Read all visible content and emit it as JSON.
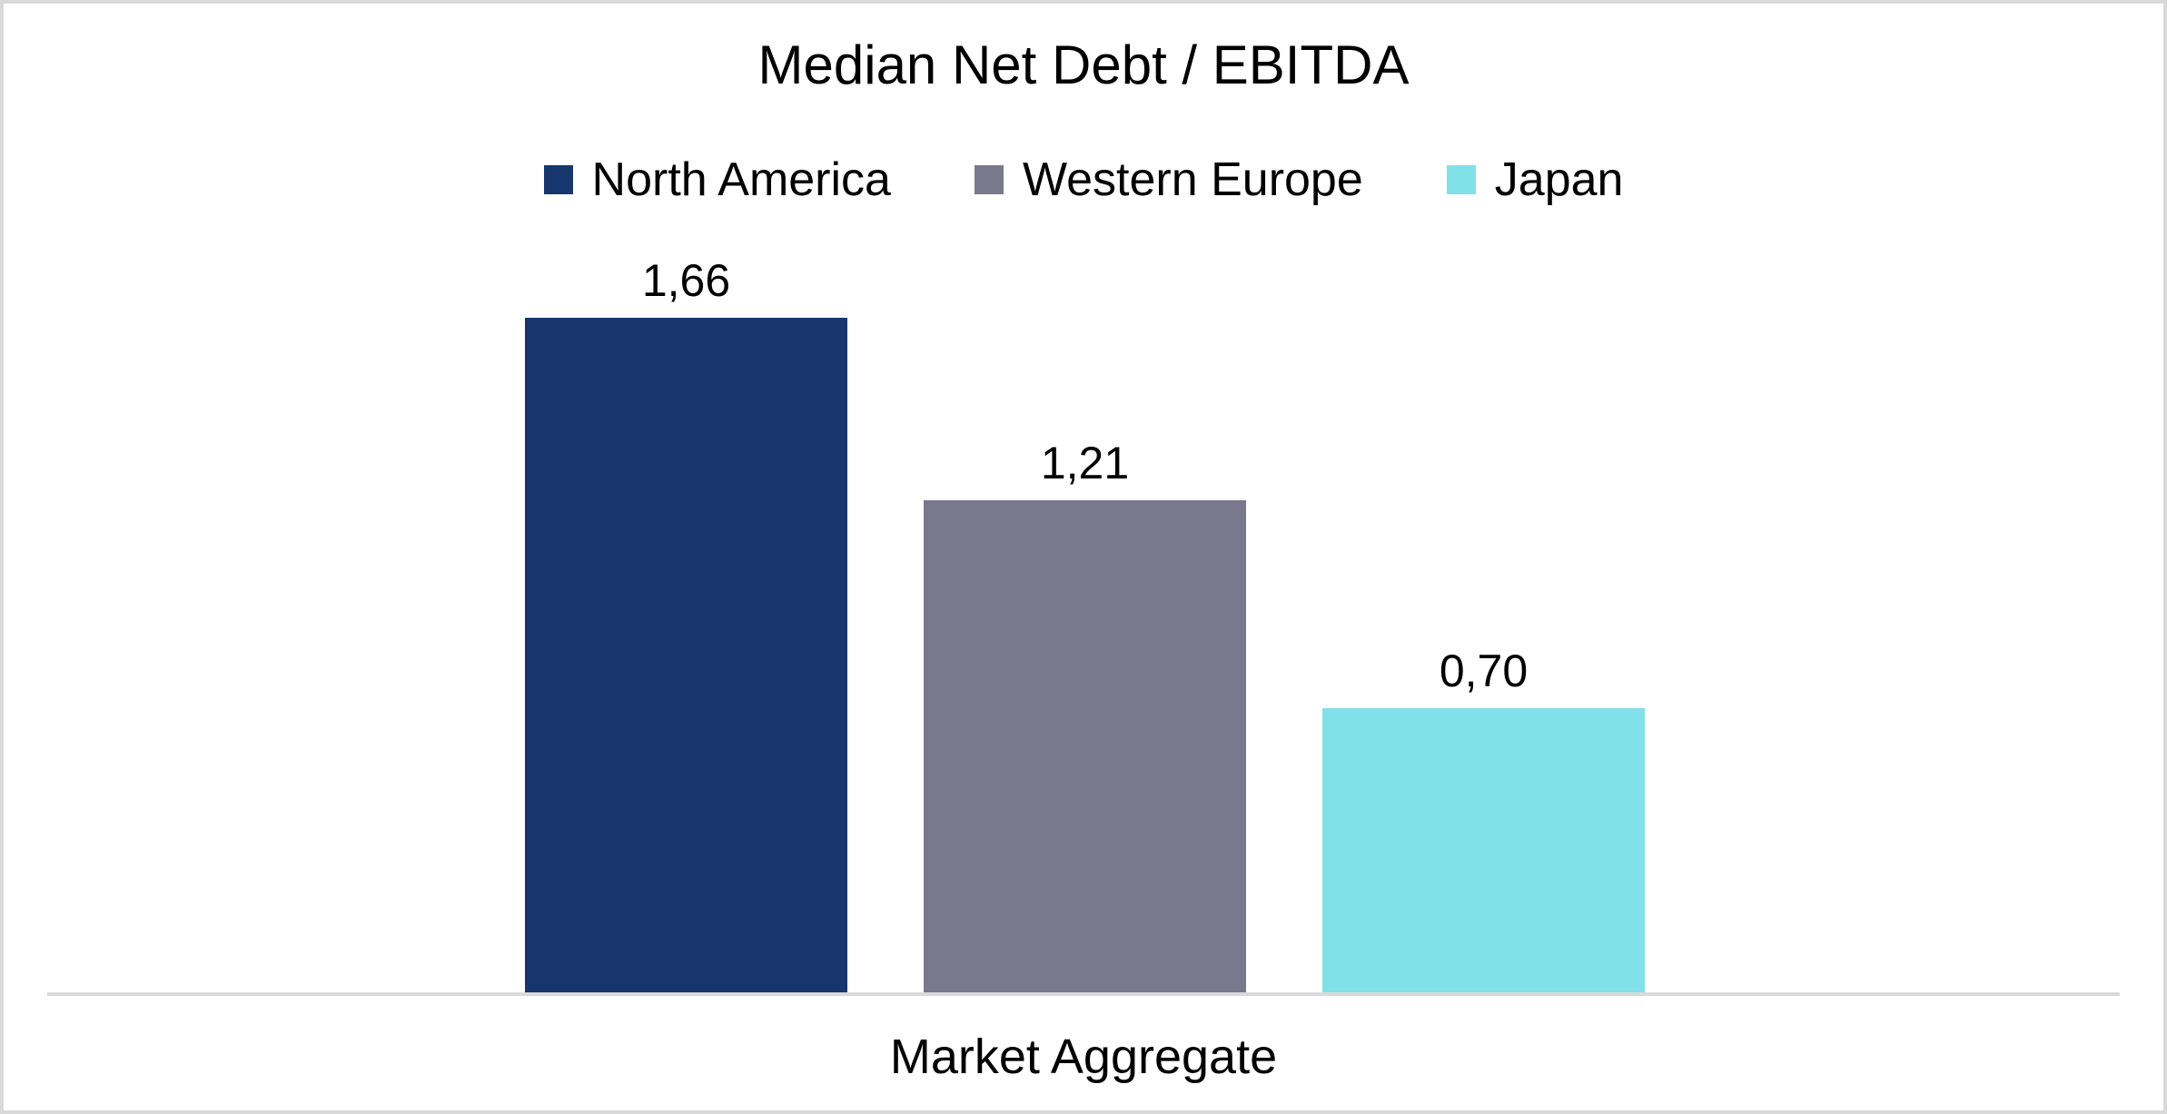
{
  "chart_data": {
    "type": "bar",
    "title": "Median Net Debt / EBITDA",
    "xlabel": "",
    "ylabel": "",
    "category": "Market Aggregate",
    "categories": [
      "Market Aggregate"
    ],
    "legend_position": "top",
    "grid": false,
    "value_labels": true,
    "decimal_separator": ",",
    "ylim": [
      0,
      1.85
    ],
    "series": [
      {
        "name": "North America",
        "value": 1.66,
        "label": "1,66",
        "color": "#17366d"
      },
      {
        "name": "Western Europe",
        "value": 1.21,
        "label": "1,21",
        "color": "#79788c"
      },
      {
        "name": "Japan",
        "value": 0.7,
        "label": "0,70",
        "color": "#82e0e9"
      }
    ],
    "colors": {
      "background": "#ffffff",
      "border": "#d9d9d9",
      "axis_line": "#d9d9d9",
      "text": "#000000"
    }
  }
}
